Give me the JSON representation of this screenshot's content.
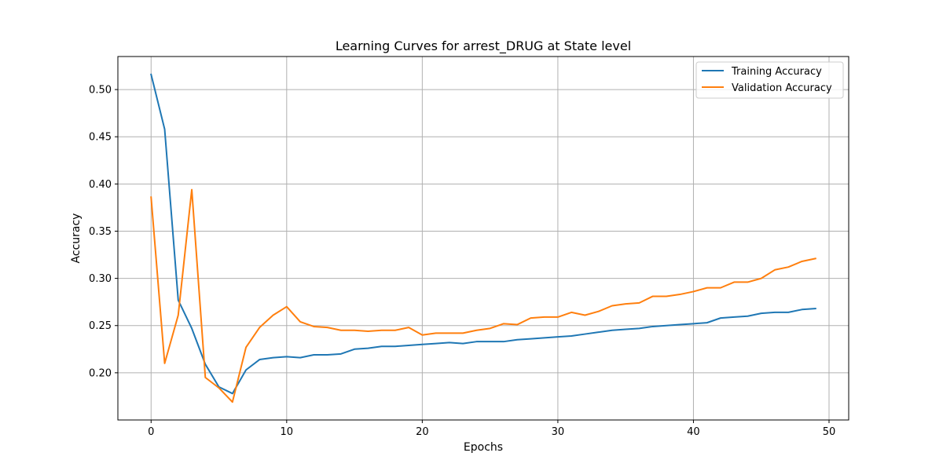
{
  "chart_data": {
    "type": "line",
    "title": "Learning Curves for arrest_DRUG at State level",
    "xlabel": "Epochs",
    "ylabel": "Accuracy",
    "xlim": [
      -2.45,
      51.45
    ],
    "ylim": [
      0.15,
      0.535
    ],
    "xticks": [
      0,
      10,
      20,
      30,
      40,
      50
    ],
    "yticks": [
      0.2,
      0.25,
      0.3,
      0.35,
      0.4,
      0.45,
      0.5
    ],
    "ytick_labels": [
      "0.20",
      "0.25",
      "0.30",
      "0.35",
      "0.40",
      "0.45",
      "0.50"
    ],
    "grid": true,
    "legend_position": "top-right",
    "x": [
      0,
      1,
      2,
      3,
      4,
      5,
      6,
      7,
      8,
      9,
      10,
      11,
      12,
      13,
      14,
      15,
      16,
      17,
      18,
      19,
      20,
      21,
      22,
      23,
      24,
      25,
      26,
      27,
      28,
      29,
      30,
      31,
      32,
      33,
      34,
      35,
      36,
      37,
      38,
      39,
      40,
      41,
      42,
      43,
      44,
      45,
      46,
      47,
      48,
      49
    ],
    "series": [
      {
        "name": "Training Accuracy",
        "color": "#1f77b4",
        "values": [
          0.516,
          0.458,
          0.277,
          0.247,
          0.209,
          0.185,
          0.178,
          0.203,
          0.214,
          0.216,
          0.217,
          0.216,
          0.219,
          0.219,
          0.22,
          0.225,
          0.226,
          0.228,
          0.228,
          0.229,
          0.23,
          0.231,
          0.232,
          0.231,
          0.233,
          0.233,
          0.233,
          0.235,
          0.236,
          0.237,
          0.238,
          0.239,
          0.241,
          0.243,
          0.245,
          0.246,
          0.247,
          0.249,
          0.25,
          0.251,
          0.252,
          0.253,
          0.258,
          0.259,
          0.26,
          0.263,
          0.264,
          0.264,
          0.267,
          0.268
        ]
      },
      {
        "name": "Validation Accuracy",
        "color": "#ff7f0e",
        "values": [
          0.386,
          0.21,
          0.261,
          0.394,
          0.195,
          0.184,
          0.169,
          0.227,
          0.248,
          0.261,
          0.27,
          0.254,
          0.249,
          0.248,
          0.245,
          0.245,
          0.244,
          0.245,
          0.245,
          0.248,
          0.24,
          0.242,
          0.242,
          0.242,
          0.245,
          0.247,
          0.252,
          0.251,
          0.258,
          0.259,
          0.259,
          0.264,
          0.261,
          0.265,
          0.271,
          0.273,
          0.274,
          0.281,
          0.281,
          0.283,
          0.286,
          0.29,
          0.29,
          0.296,
          0.296,
          0.3,
          0.309,
          0.312,
          0.318,
          0.321
        ]
      }
    ]
  }
}
